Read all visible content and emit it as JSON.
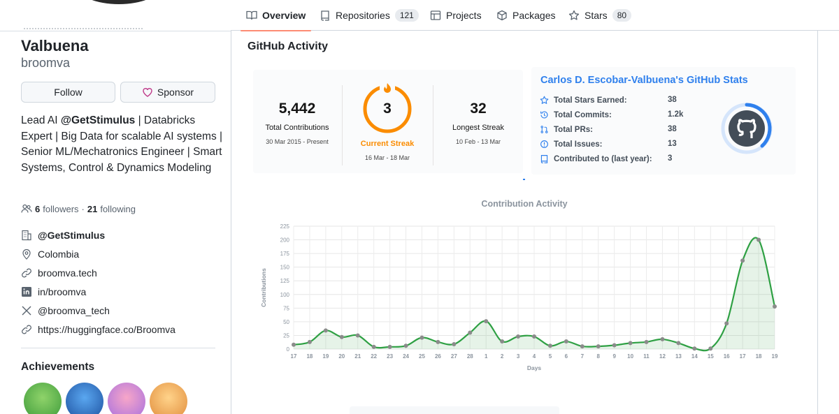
{
  "nav": {
    "tabs": [
      {
        "label": "Overview",
        "icon": "book-icon",
        "active": true
      },
      {
        "label": "Repositories",
        "icon": "repo-icon",
        "count": "121"
      },
      {
        "label": "Projects",
        "icon": "table-icon"
      },
      {
        "label": "Packages",
        "icon": "package-icon"
      },
      {
        "label": "Stars",
        "icon": "star-icon",
        "count": "80"
      }
    ]
  },
  "profile": {
    "fullname": "Valbuena",
    "username": "broomva",
    "follow_label": "Follow",
    "sponsor_label": "Sponsor",
    "bio": {
      "pre": "Lead AI ",
      "org": "@GetStimulus",
      "post": " | Databricks Expert | Big Data for scalable AI systems | Senior ML/Mechatronics Engineer | Smart Systems, Control & Dynamics Modeling"
    },
    "followers": "6",
    "followers_label": "followers",
    "following": "21",
    "following_label": "following",
    "info": [
      {
        "icon": "organization-icon",
        "text": "@GetStimulus"
      },
      {
        "icon": "location-icon",
        "text": "Colombia"
      },
      {
        "icon": "link-icon",
        "text": "broomva.tech"
      },
      {
        "icon": "linkedin-icon",
        "text": "in/broomva"
      },
      {
        "icon": "x-icon",
        "text": "@broomva_tech"
      },
      {
        "icon": "link-icon",
        "text": "https://huggingface.co/Broomva"
      }
    ],
    "achievements_title": "Achievements"
  },
  "readme": {
    "title": "GitHub Activity",
    "streak": {
      "total": "5,442",
      "total_label": "Total Contributions",
      "total_range": "30 Mar 2015 - Present",
      "current": "3",
      "current_label": "Current Streak",
      "current_range": "16 Mar - 18 Mar",
      "longest": "32",
      "longest_label": "Longest Streak",
      "longest_range": "10 Feb - 13 Mar",
      "accent": "#fb8c00"
    },
    "stats": {
      "title": "Carlos D. Escobar-Valbuena's GitHub Stats",
      "rows": [
        {
          "icon": "star-icon",
          "label": "Total Stars Earned:",
          "value": "38"
        },
        {
          "icon": "history-icon",
          "label": "Total Commits:",
          "value": "1.2k"
        },
        {
          "icon": "pull-request-icon",
          "label": "Total PRs:",
          "value": "38"
        },
        {
          "icon": "issue-icon",
          "label": "Total Issues:",
          "value": "13"
        },
        {
          "icon": "repo-icon",
          "label": "Contributed to (last year):",
          "value": "3"
        }
      ],
      "accent": "#2f80ed"
    }
  },
  "chart_data": {
    "type": "area",
    "title": "Contribution Activity",
    "xlabel": "Days",
    "ylabel": "Contributions",
    "x": [
      "17",
      "18",
      "19",
      "20",
      "21",
      "22",
      "23",
      "24",
      "25",
      "26",
      "27",
      "28",
      "1",
      "2",
      "3",
      "4",
      "5",
      "6",
      "7",
      "8",
      "9",
      "10",
      "11",
      "12",
      "13",
      "14",
      "15",
      "16",
      "17",
      "18",
      "19"
    ],
    "values": [
      8,
      13,
      34,
      22,
      25,
      4,
      4,
      6,
      21,
      13,
      9,
      30,
      51,
      14,
      23,
      23,
      6,
      14,
      5,
      5,
      7,
      11,
      13,
      18,
      11,
      1,
      1,
      47,
      162,
      200,
      78
    ],
    "ylim": [
      0,
      225
    ],
    "yticks": [
      0,
      25,
      50,
      75,
      100,
      125,
      150,
      175,
      200,
      225
    ],
    "grid": true,
    "line_color": "#2ea043"
  }
}
